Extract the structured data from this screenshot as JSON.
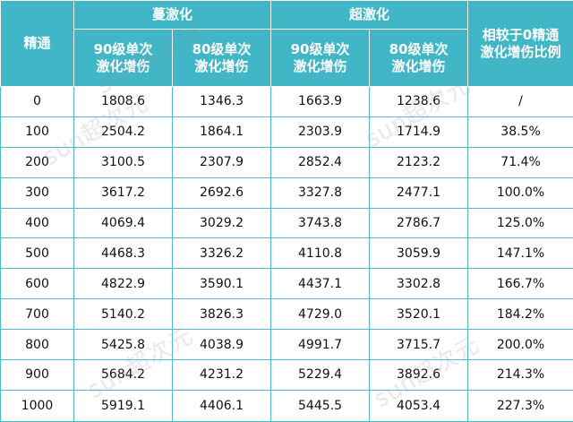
{
  "header": {
    "group_1": "蔓激化",
    "group_2": "超激化",
    "col_refine": "精通",
    "col_90_line1": "90级单次",
    "col_90_line2": "激化增伤",
    "col_80_line1": "80级单次",
    "col_80_line2": "激化增伤",
    "col_ratio_line1": "相较于0精通",
    "col_ratio_line2": "激化增伤比例"
  },
  "rows": [
    {
      "em": "0",
      "spread90": "1808.6",
      "spread80": "1346.3",
      "aggr90": "1663.9",
      "aggr80": "1238.6",
      "ratio": "/"
    },
    {
      "em": "100",
      "spread90": "2504.2",
      "spread80": "1864.1",
      "aggr90": "2303.9",
      "aggr80": "1714.9",
      "ratio": "38.5%"
    },
    {
      "em": "200",
      "spread90": "3100.5",
      "spread80": "2307.9",
      "aggr90": "2852.4",
      "aggr80": "2123.2",
      "ratio": "71.4%"
    },
    {
      "em": "300",
      "spread90": "3617.2",
      "spread80": "2692.6",
      "aggr90": "3327.8",
      "aggr80": "2477.1",
      "ratio": "100.0%"
    },
    {
      "em": "400",
      "spread90": "4069.4",
      "spread80": "3029.2",
      "aggr90": "3743.8",
      "aggr80": "2786.7",
      "ratio": "125.0%"
    },
    {
      "em": "500",
      "spread90": "4468.3",
      "spread80": "3326.2",
      "aggr90": "4110.8",
      "aggr80": "3059.9",
      "ratio": "147.1%"
    },
    {
      "em": "600",
      "spread90": "4822.9",
      "spread80": "3590.1",
      "aggr90": "4437.1",
      "aggr80": "3302.8",
      "ratio": "166.7%"
    },
    {
      "em": "700",
      "spread90": "5140.2",
      "spread80": "3826.3",
      "aggr90": "4729.0",
      "aggr80": "3520.1",
      "ratio": "184.2%"
    },
    {
      "em": "800",
      "spread90": "5425.8",
      "spread80": "4038.9",
      "aggr90": "4991.7",
      "aggr80": "3715.7",
      "ratio": "200.0%"
    },
    {
      "em": "900",
      "spread90": "5684.2",
      "spread80": "4231.2",
      "aggr90": "5229.4",
      "aggr80": "3892.6",
      "ratio": "214.3%"
    },
    {
      "em": "1000",
      "spread90": "5919.1",
      "spread80": "4406.1",
      "aggr90": "5445.5",
      "aggr80": "4053.4",
      "ratio": "227.3%"
    }
  ],
  "watermark": {
    "text": "sun超次元"
  },
  "colors": {
    "header_bg": "#40b6c6",
    "grid_line": "#4dbdcc"
  }
}
